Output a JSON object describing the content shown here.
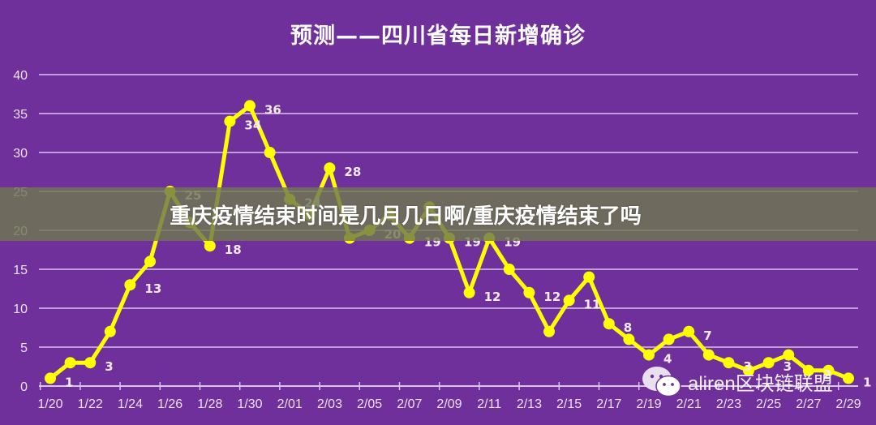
{
  "title": "预测——四川省每日新增确诊",
  "overlay_banner": "重庆疫情结束时间是几月几日啊/重庆疫情结束了吗",
  "watermark": {
    "icon": "wechat-icon",
    "text": "aliren区块链联盟"
  },
  "colors": {
    "background": "#70309c",
    "line": "#ffff00",
    "gridline": "#d9c4ec",
    "text": "#ffffff",
    "banner": "#6e7850"
  },
  "chart_data": {
    "type": "line",
    "title": "预测——四川省每日新增确诊",
    "xlabel": "",
    "ylabel": "",
    "ylim": [
      0,
      40
    ],
    "yticks": [
      0,
      5,
      10,
      15,
      20,
      25,
      30,
      35,
      40
    ],
    "grid": true,
    "legend": null,
    "xtick_labels": [
      "1/20",
      "1/22",
      "1/24",
      "1/26",
      "1/28",
      "1/30",
      "2/01",
      "2/03",
      "2/05",
      "2/07",
      "2/09",
      "2/11",
      "2/13",
      "2/15",
      "2/17",
      "2/19",
      "2/21",
      "2/23",
      "2/25",
      "2/27",
      "2/29"
    ],
    "x": [
      "1/20",
      "1/21",
      "1/22",
      "1/23",
      "1/24",
      "1/25",
      "1/26",
      "1/27",
      "1/28",
      "1/29",
      "1/30",
      "1/31",
      "2/01",
      "2/02",
      "2/03",
      "2/04",
      "2/05",
      "2/06",
      "2/07",
      "2/08",
      "2/09",
      "2/10",
      "2/11",
      "2/12",
      "2/13",
      "2/14",
      "2/15",
      "2/16",
      "2/17",
      "2/18",
      "2/19",
      "2/20",
      "2/21",
      "2/22",
      "2/23",
      "2/24",
      "2/25",
      "2/26",
      "2/27",
      "2/28",
      "2/29"
    ],
    "series": [
      {
        "name": "四川省每日新增确诊",
        "values": [
          1,
          3,
          3,
          7,
          13,
          16,
          25,
          21,
          18,
          34,
          36,
          30,
          24,
          22,
          28,
          19,
          20,
          22,
          19,
          23,
          19,
          12,
          19,
          15,
          12,
          7,
          11,
          14,
          8,
          6,
          4,
          6,
          7,
          4,
          3,
          2,
          3,
          4,
          2,
          2,
          1
        ]
      }
    ]
  }
}
